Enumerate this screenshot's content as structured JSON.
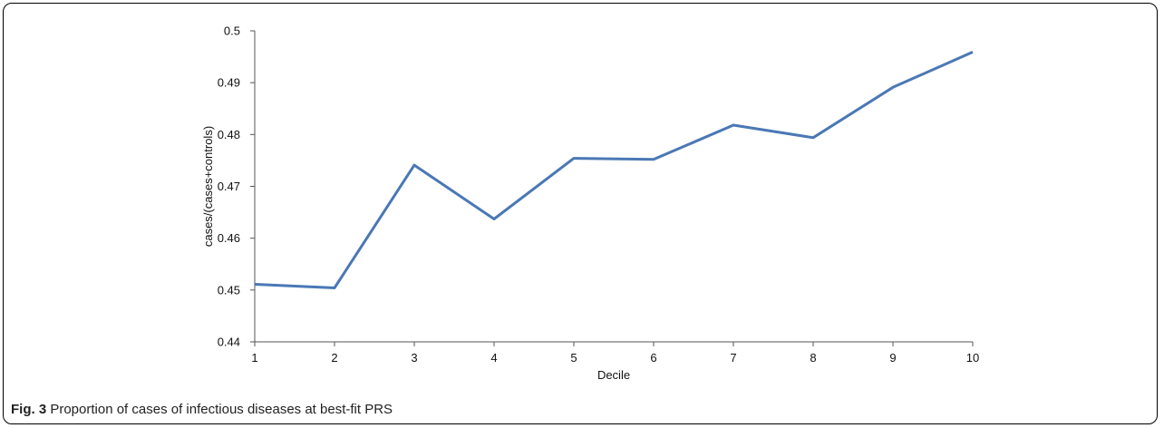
{
  "caption": {
    "label": "Fig. 3",
    "text": "Proportion of cases of infectious diseases at best-fit PRS"
  },
  "chart_data": {
    "type": "line",
    "xlabel": "Decile",
    "ylabel": "cases/(cases+controls)",
    "x": [
      1,
      2,
      3,
      4,
      5,
      6,
      7,
      8,
      9,
      10
    ],
    "ylim": [
      0.44,
      0.5
    ],
    "yticks": [
      "0.44",
      "0.45",
      "0.46",
      "0.47",
      "0.48",
      "0.49",
      "0.5"
    ],
    "xticks": [
      "1",
      "2",
      "3",
      "4",
      "5",
      "6",
      "7",
      "8",
      "9",
      "10"
    ],
    "series": [
      {
        "values": [
          0.4511,
          0.4504,
          0.4741,
          0.4637,
          0.4754,
          0.4752,
          0.4818,
          0.4794,
          0.4891,
          0.4959
        ]
      }
    ],
    "line_color": "#4a78b5",
    "grid": false
  }
}
